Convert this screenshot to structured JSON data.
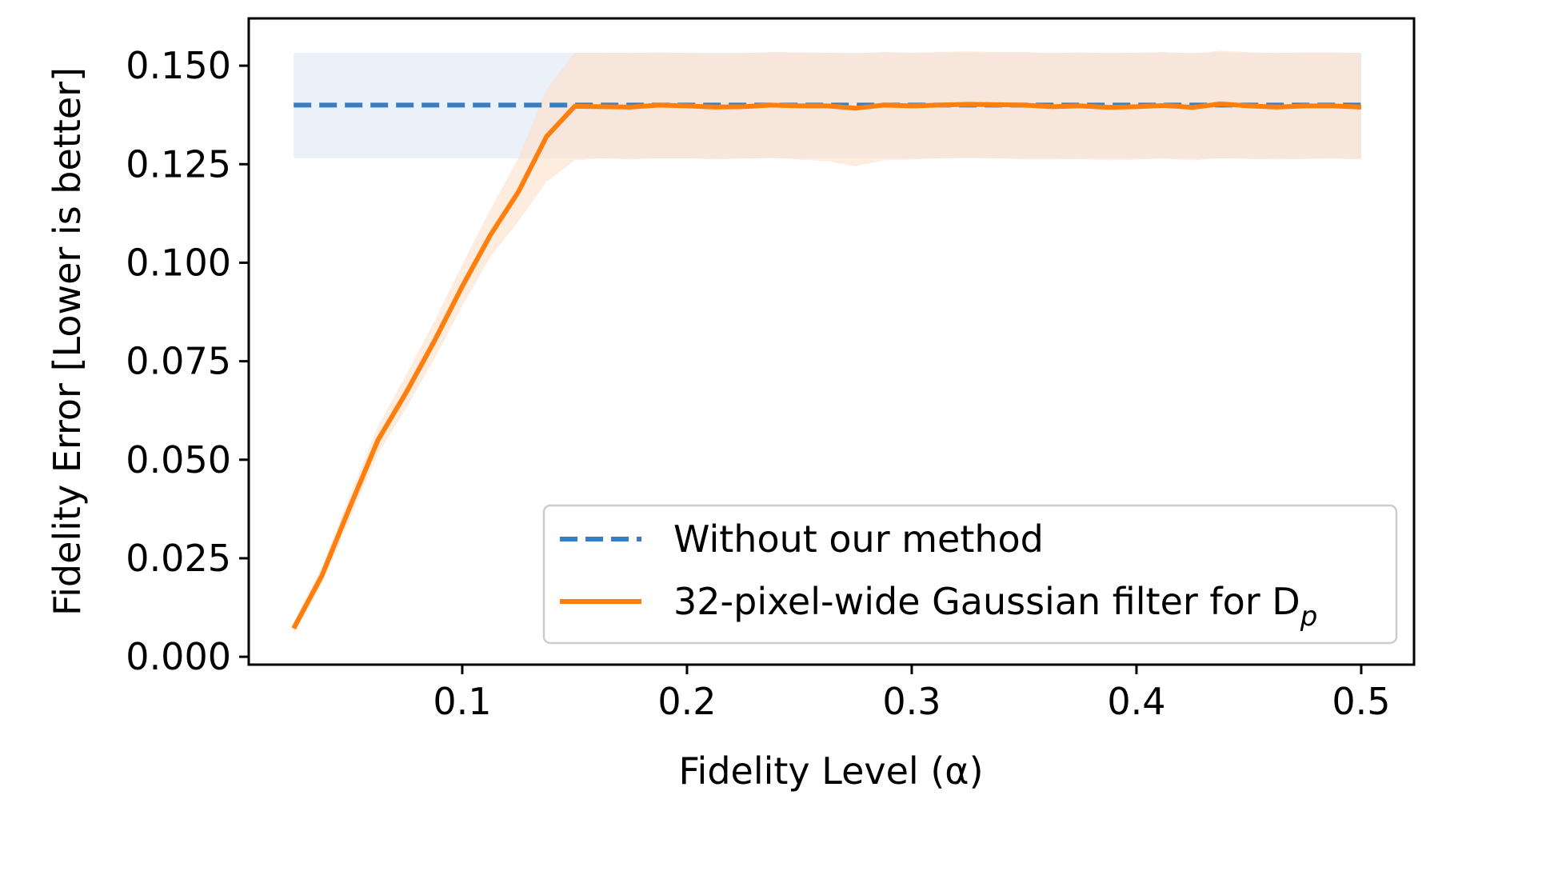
{
  "chart_data": {
    "type": "line",
    "xlabel": "Fidelity Level (α)",
    "ylabel": "Fidelity Error [Lower is better]",
    "xlim": [
      0.005,
      0.5235
    ],
    "ylim": [
      -0.002,
      0.162
    ],
    "x_ticks": [
      0.1,
      0.2,
      0.3,
      0.4,
      0.5
    ],
    "x_tick_labels": [
      "0.1",
      "0.2",
      "0.3",
      "0.4",
      "0.5"
    ],
    "y_ticks": [
      0.0,
      0.025,
      0.05,
      0.075,
      0.1,
      0.125,
      0.15
    ],
    "y_tick_labels": [
      "0.000",
      "0.025",
      "0.050",
      "0.075",
      "0.100",
      "0.125",
      "0.150"
    ],
    "grid": false,
    "legend_position": "lower-right",
    "series": [
      {
        "name": "Without our method",
        "style": "dashed",
        "color": "#3a7ebf",
        "band_color": "#dce8f4",
        "x": [
          0.025,
          0.5
        ],
        "y": [
          0.14,
          0.14
        ],
        "band_lower": [
          0.1265,
          0.1265
        ],
        "band_upper": [
          0.1533,
          0.1533
        ]
      },
      {
        "name": "32-pixel-wide Gaussian filter for D",
        "name_subscript": "p",
        "style": "solid",
        "color": "#ff7f0e",
        "band_color": "#fde0c8",
        "x": [
          0.025,
          0.0375,
          0.05,
          0.0625,
          0.075,
          0.0875,
          0.1,
          0.1125,
          0.125,
          0.1375,
          0.15,
          0.1625,
          0.175,
          0.1875,
          0.2,
          0.2125,
          0.225,
          0.2375,
          0.25,
          0.2625,
          0.275,
          0.2875,
          0.3,
          0.3125,
          0.325,
          0.3375,
          0.35,
          0.3625,
          0.375,
          0.3875,
          0.4,
          0.4125,
          0.425,
          0.4375,
          0.45,
          0.4625,
          0.475,
          0.4875,
          0.5
        ],
        "y": [
          0.0072,
          0.0205,
          0.038,
          0.055,
          0.067,
          0.08,
          0.094,
          0.107,
          0.118,
          0.132,
          0.1397,
          0.1396,
          0.1395,
          0.14,
          0.1398,
          0.1395,
          0.1396,
          0.14,
          0.1398,
          0.1398,
          0.1392,
          0.14,
          0.1398,
          0.14,
          0.1402,
          0.1401,
          0.14,
          0.1396,
          0.1398,
          0.1394,
          0.1396,
          0.1399,
          0.1394,
          0.1403,
          0.1398,
          0.1395,
          0.1398,
          0.1398,
          0.1395
        ],
        "band_lower": [
          0.0058,
          0.0185,
          0.035,
          0.0515,
          0.063,
          0.0755,
          0.089,
          0.1015,
          0.1105,
          0.1205,
          0.126,
          0.1265,
          0.1262,
          0.1265,
          0.1265,
          0.1262,
          0.1264,
          0.1266,
          0.1262,
          0.1258,
          0.1245,
          0.126,
          0.1262,
          0.1265,
          0.1266,
          0.1265,
          0.1262,
          0.1262,
          0.1263,
          0.126,
          0.1262,
          0.1264,
          0.126,
          0.1265,
          0.1263,
          0.1262,
          0.1263,
          0.1264,
          0.1262
        ],
        "band_upper": [
          0.0088,
          0.0228,
          0.041,
          0.0585,
          0.0715,
          0.085,
          0.0995,
          0.1135,
          0.1265,
          0.144,
          0.1533,
          0.1533,
          0.1532,
          0.1534,
          0.1532,
          0.153,
          0.1531,
          0.1535,
          0.1534,
          0.1533,
          0.153,
          0.1535,
          0.1533,
          0.1535,
          0.1536,
          0.1535,
          0.1535,
          0.1531,
          0.1534,
          0.1531,
          0.1533,
          0.1535,
          0.153,
          0.1538,
          0.1534,
          0.1532,
          0.1534,
          0.1534,
          0.1532
        ]
      }
    ]
  }
}
